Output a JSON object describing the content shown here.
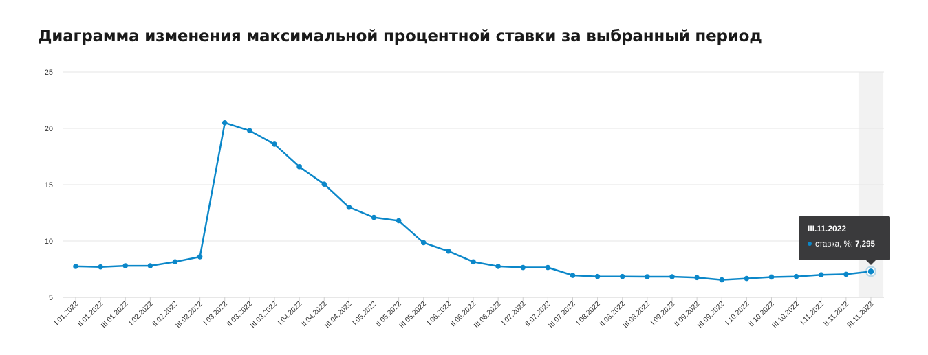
{
  "title": "Диаграмма изменения максимальной процентной ставки за выбранный период",
  "colors": {
    "line": "#0b87c9",
    "grid": "#e6e6e6",
    "highlight": "#f2f2f2",
    "tooltip_bg": "#3a3a3c"
  },
  "tooltip": {
    "date": "III.11.2022",
    "series_label": "ставка, %:",
    "value": "7,295"
  },
  "chart_data": {
    "type": "line",
    "title": "Диаграмма изменения максимальной процентной ставки за выбранный период",
    "xlabel": "",
    "ylabel": "",
    "ylim": [
      5,
      25
    ],
    "yticks": [
      "25",
      "20",
      "15",
      "10",
      "5"
    ],
    "grid": true,
    "highlighted_category": "III.11.2022",
    "categories": [
      "I.01.2022",
      "II.01.2022",
      "III.01.2022",
      "I.02.2022",
      "II.02.2022",
      "III.02.2022",
      "I.03.2022",
      "II.03.2022",
      "III.03.2022",
      "I.04.2022",
      "II.04.2022",
      "III.04.2022",
      "I.05.2022",
      "II.05.2022",
      "III.05.2022",
      "I.06.2022",
      "II.06.2022",
      "III.06.2022",
      "I.07.2022",
      "II.07.2022",
      "III.07.2022",
      "I.08.2022",
      "II.08.2022",
      "III.08.2022",
      "I.09.2022",
      "II.09.2022",
      "III.09.2022",
      "I.10.2022",
      "II.10.2022",
      "III.10.2022",
      "I.11.2022",
      "II.11.2022",
      "III.11.2022"
    ],
    "series": [
      {
        "name": "ставка, %",
        "values": [
          7.75,
          7.7,
          7.8,
          7.8,
          8.15,
          8.6,
          20.5,
          19.8,
          18.6,
          16.6,
          15.05,
          13.0,
          12.1,
          11.8,
          9.85,
          9.1,
          8.15,
          7.75,
          7.65,
          7.65,
          6.95,
          6.85,
          6.85,
          6.83,
          6.83,
          6.75,
          6.55,
          6.67,
          6.8,
          6.85,
          7.0,
          7.05,
          7.295
        ]
      }
    ]
  }
}
